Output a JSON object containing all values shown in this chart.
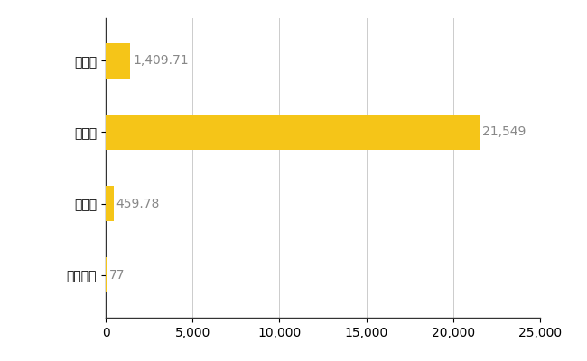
{
  "categories": [
    "標津町",
    "県平均",
    "県最大",
    "全国平均"
  ],
  "values": [
    77,
    459.78,
    21549,
    1409.71
  ],
  "bar_color": "#F5C518",
  "labels": [
    "77",
    "459.78",
    "21,549",
    "1,409.71"
  ],
  "xlim": [
    0,
    25000
  ],
  "xticks": [
    0,
    5000,
    10000,
    15000,
    20000,
    25000
  ],
  "background_color": "#ffffff",
  "grid_color": "#cccccc",
  "label_fontsize": 10,
  "tick_fontsize": 10,
  "bar_height": 0.5,
  "label_color": "#888888"
}
